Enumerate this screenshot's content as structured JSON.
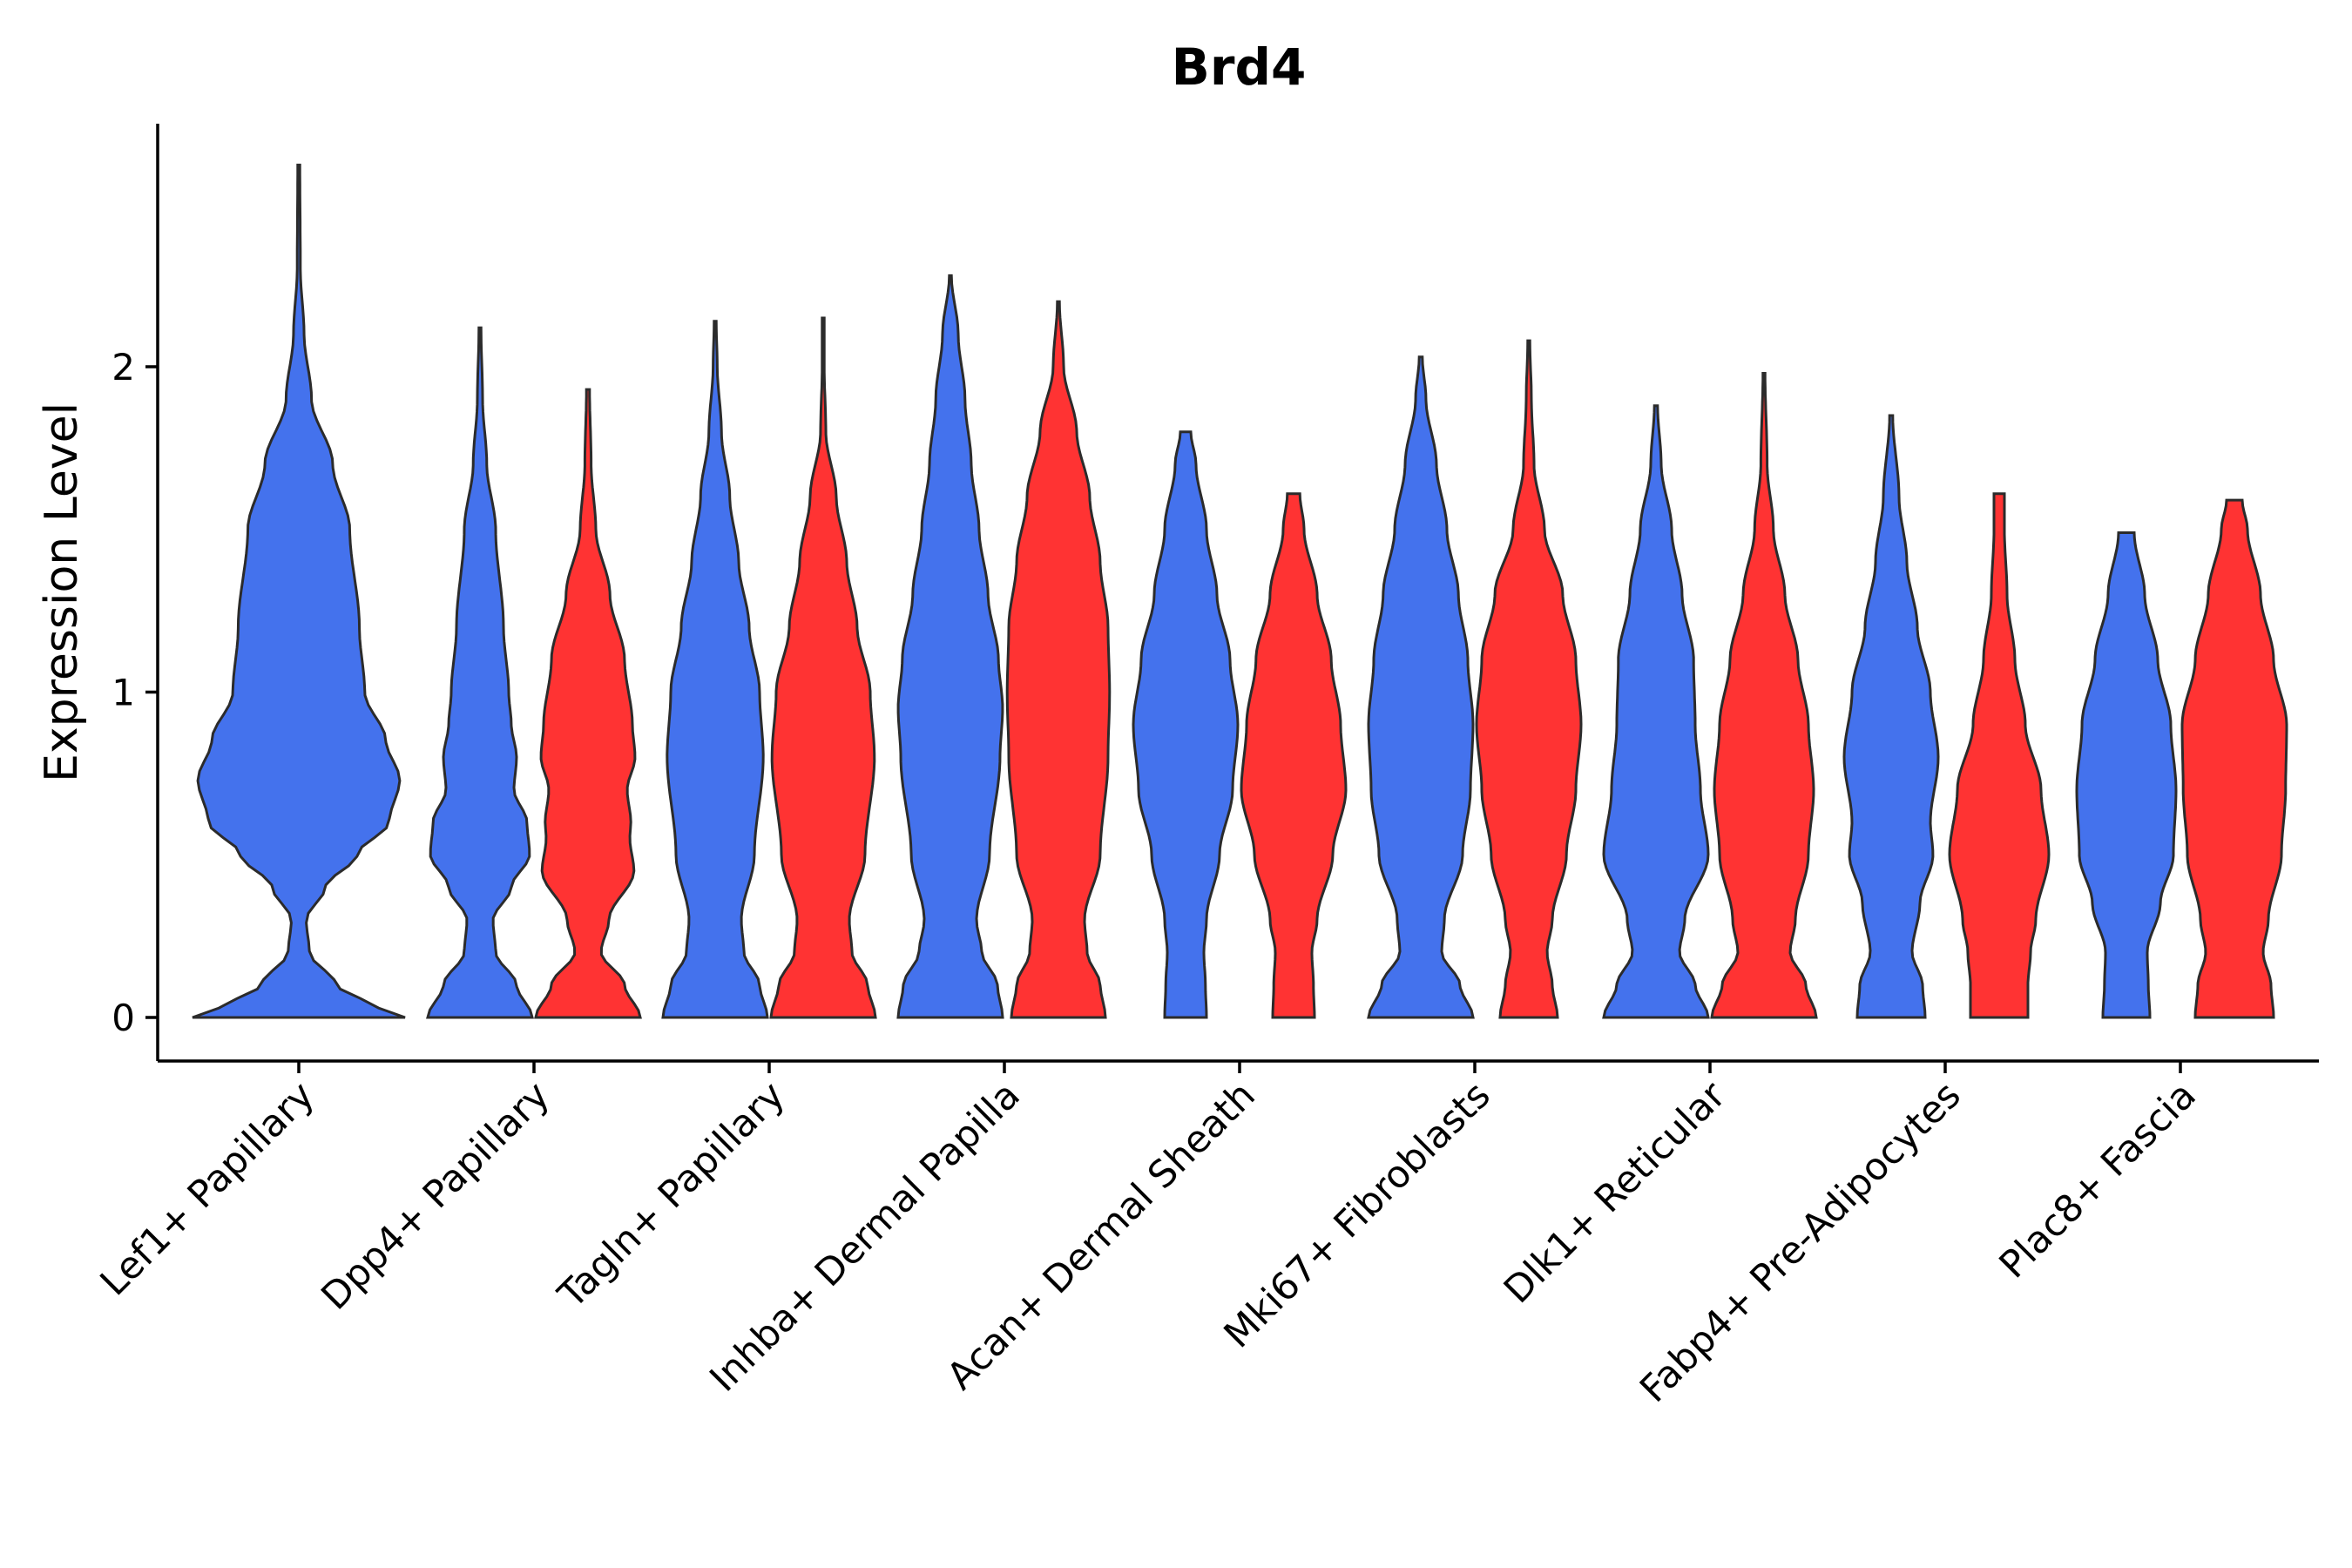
{
  "chart_data": {
    "type": "violin",
    "title": "Brd4",
    "xlabel": "",
    "ylabel": "Expression Level",
    "ylim": [
      -0.13,
      2.77
    ],
    "yticks": [
      0,
      1,
      2
    ],
    "grid": false,
    "legend": "none",
    "colors": {
      "group1": "#4472ED",
      "group2": "#FF3333",
      "outline": "#2b2b2b"
    },
    "categories": [
      "Lef1+ Papillary",
      "Dpp4+ Papillary",
      "Tagln+ Papillary",
      "Inhba+ Dermal Papilla",
      "Acan+ Dermal Sheath",
      "Mki67+ Fibroblasts",
      "Dlk1+ Reticular",
      "Fabp4+ Pre-Adipocytes",
      "Plac8+ Fascia"
    ],
    "violins": [
      {
        "category": "Lef1+ Papillary",
        "group": "group1",
        "max": 2.62,
        "profile": [
          [
            0,
            1.0
          ],
          [
            0.05,
            0.6
          ],
          [
            0.1,
            0.35
          ],
          [
            0.2,
            0.1
          ],
          [
            0.3,
            0.07
          ],
          [
            0.4,
            0.25
          ],
          [
            0.5,
            0.55
          ],
          [
            0.6,
            0.85
          ],
          [
            0.73,
            0.95
          ],
          [
            0.85,
            0.82
          ],
          [
            1.0,
            0.62
          ],
          [
            1.2,
            0.57
          ],
          [
            1.5,
            0.48
          ],
          [
            1.7,
            0.32
          ],
          [
            1.9,
            0.12
          ],
          [
            2.1,
            0.05
          ],
          [
            2.3,
            0.015
          ],
          [
            2.62,
            0.01
          ]
        ]
      },
      {
        "category": "Dpp4+ Papillary",
        "group": "group1",
        "max": 2.12,
        "profile": [
          [
            0,
            1.0
          ],
          [
            0.1,
            0.7
          ],
          [
            0.2,
            0.3
          ],
          [
            0.3,
            0.25
          ],
          [
            0.4,
            0.6
          ],
          [
            0.5,
            0.95
          ],
          [
            0.6,
            0.9
          ],
          [
            0.7,
            0.65
          ],
          [
            0.8,
            0.7
          ],
          [
            0.9,
            0.6
          ],
          [
            1.0,
            0.55
          ],
          [
            1.2,
            0.45
          ],
          [
            1.5,
            0.3
          ],
          [
            1.7,
            0.13
          ],
          [
            1.9,
            0.05
          ],
          [
            2.12,
            0.02
          ]
        ]
      },
      {
        "category": "Dpp4+ Papillary",
        "group": "group2",
        "max": 1.93,
        "profile": [
          [
            0,
            1.0
          ],
          [
            0.1,
            0.7
          ],
          [
            0.2,
            0.25
          ],
          [
            0.3,
            0.4
          ],
          [
            0.45,
            0.88
          ],
          [
            0.55,
            0.8
          ],
          [
            0.6,
            0.82
          ],
          [
            0.7,
            0.75
          ],
          [
            0.8,
            0.9
          ],
          [
            0.9,
            0.85
          ],
          [
            1.1,
            0.7
          ],
          [
            1.3,
            0.42
          ],
          [
            1.5,
            0.15
          ],
          [
            1.7,
            0.06
          ],
          [
            1.93,
            0.03
          ]
        ]
      },
      {
        "category": "Tagln+ Papillary",
        "group": "group1",
        "max": 2.14,
        "profile": [
          [
            0,
            1.0
          ],
          [
            0.1,
            0.85
          ],
          [
            0.2,
            0.55
          ],
          [
            0.3,
            0.5
          ],
          [
            0.5,
            0.75
          ],
          [
            0.8,
            0.92
          ],
          [
            1.0,
            0.85
          ],
          [
            1.2,
            0.65
          ],
          [
            1.4,
            0.45
          ],
          [
            1.6,
            0.28
          ],
          [
            1.8,
            0.12
          ],
          [
            2.0,
            0.04
          ],
          [
            2.14,
            0.02
          ]
        ]
      },
      {
        "category": "Tagln+ Papillary",
        "group": "group2",
        "max": 2.15,
        "profile": [
          [
            0,
            1.0
          ],
          [
            0.1,
            0.85
          ],
          [
            0.2,
            0.55
          ],
          [
            0.3,
            0.5
          ],
          [
            0.5,
            0.8
          ],
          [
            0.8,
            0.98
          ],
          [
            1.0,
            0.9
          ],
          [
            1.2,
            0.65
          ],
          [
            1.4,
            0.45
          ],
          [
            1.6,
            0.25
          ],
          [
            1.8,
            0.05
          ],
          [
            2.0,
            0.02
          ],
          [
            2.15,
            0.02
          ]
        ]
      },
      {
        "category": "Inhba+ Dermal Papilla",
        "group": "group1",
        "max": 2.28,
        "profile": [
          [
            0,
            1.0
          ],
          [
            0.1,
            0.9
          ],
          [
            0.2,
            0.6
          ],
          [
            0.3,
            0.5
          ],
          [
            0.5,
            0.75
          ],
          [
            0.8,
            0.95
          ],
          [
            0.95,
            1.0
          ],
          [
            1.1,
            0.92
          ],
          [
            1.3,
            0.72
          ],
          [
            1.5,
            0.55
          ],
          [
            1.7,
            0.4
          ],
          [
            1.9,
            0.28
          ],
          [
            2.1,
            0.15
          ],
          [
            2.28,
            0.02
          ]
        ]
      },
      {
        "category": "Inhba+ Dermal Papilla",
        "group": "group2",
        "max": 2.2,
        "profile": [
          [
            0,
            0.9
          ],
          [
            0.1,
            0.8
          ],
          [
            0.2,
            0.55
          ],
          [
            0.3,
            0.5
          ],
          [
            0.5,
            0.8
          ],
          [
            0.8,
            0.95
          ],
          [
            1.0,
            0.98
          ],
          [
            1.2,
            0.95
          ],
          [
            1.4,
            0.8
          ],
          [
            1.6,
            0.6
          ],
          [
            1.8,
            0.35
          ],
          [
            2.0,
            0.1
          ],
          [
            2.2,
            0.02
          ]
        ]
      },
      {
        "category": "Acan+ Dermal Sheath",
        "group": "group1",
        "max": 1.8,
        "profile": [
          [
            0,
            0.4
          ],
          [
            0.1,
            0.38
          ],
          [
            0.2,
            0.35
          ],
          [
            0.3,
            0.4
          ],
          [
            0.5,
            0.65
          ],
          [
            0.7,
            0.9
          ],
          [
            0.9,
            1.0
          ],
          [
            1.1,
            0.85
          ],
          [
            1.3,
            0.6
          ],
          [
            1.5,
            0.4
          ],
          [
            1.7,
            0.2
          ],
          [
            1.8,
            0.1
          ]
        ]
      },
      {
        "category": "Acan+ Dermal Sheath",
        "group": "group2",
        "max": 1.61,
        "profile": [
          [
            0,
            0.4
          ],
          [
            0.1,
            0.38
          ],
          [
            0.2,
            0.35
          ],
          [
            0.3,
            0.45
          ],
          [
            0.5,
            0.75
          ],
          [
            0.7,
            1.0
          ],
          [
            0.9,
            0.9
          ],
          [
            1.1,
            0.72
          ],
          [
            1.3,
            0.45
          ],
          [
            1.5,
            0.2
          ],
          [
            1.61,
            0.12
          ]
        ]
      },
      {
        "category": "Mki67+ Fibroblasts",
        "group": "group1",
        "max": 2.03,
        "profile": [
          [
            0,
            1.0
          ],
          [
            0.1,
            0.75
          ],
          [
            0.2,
            0.4
          ],
          [
            0.3,
            0.45
          ],
          [
            0.5,
            0.8
          ],
          [
            0.7,
            0.95
          ],
          [
            0.9,
            1.0
          ],
          [
            1.1,
            0.9
          ],
          [
            1.3,
            0.72
          ],
          [
            1.5,
            0.5
          ],
          [
            1.7,
            0.3
          ],
          [
            1.9,
            0.1
          ],
          [
            2.03,
            0.03
          ]
        ]
      },
      {
        "category": "Mki67+ Fibroblasts",
        "group": "group2",
        "max": 2.08,
        "profile": [
          [
            0,
            0.55
          ],
          [
            0.1,
            0.45
          ],
          [
            0.2,
            0.35
          ],
          [
            0.3,
            0.45
          ],
          [
            0.5,
            0.72
          ],
          [
            0.7,
            0.9
          ],
          [
            0.9,
            1.0
          ],
          [
            1.1,
            0.9
          ],
          [
            1.3,
            0.65
          ],
          [
            1.5,
            0.3
          ],
          [
            1.7,
            0.1
          ],
          [
            1.9,
            0.05
          ],
          [
            2.08,
            0.02
          ]
        ]
      },
      {
        "category": "Dlk1+ Reticular",
        "group": "group1",
        "max": 1.88,
        "profile": [
          [
            0,
            1.0
          ],
          [
            0.1,
            0.75
          ],
          [
            0.2,
            0.45
          ],
          [
            0.3,
            0.55
          ],
          [
            0.5,
            1.0
          ],
          [
            0.7,
            0.85
          ],
          [
            0.9,
            0.75
          ],
          [
            1.1,
            0.72
          ],
          [
            1.3,
            0.5
          ],
          [
            1.5,
            0.3
          ],
          [
            1.7,
            0.1
          ],
          [
            1.88,
            0.03
          ]
        ]
      },
      {
        "category": "Dlk1+ Reticular",
        "group": "group2",
        "max": 1.98,
        "profile": [
          [
            0,
            1.0
          ],
          [
            0.1,
            0.8
          ],
          [
            0.2,
            0.5
          ],
          [
            0.3,
            0.6
          ],
          [
            0.5,
            0.85
          ],
          [
            0.7,
            0.95
          ],
          [
            0.9,
            0.85
          ],
          [
            1.1,
            0.65
          ],
          [
            1.3,
            0.4
          ],
          [
            1.5,
            0.18
          ],
          [
            1.7,
            0.06
          ],
          [
            1.98,
            0.02
          ]
        ]
      },
      {
        "category": "Fabp4+ Pre-Adipocytes",
        "group": "group1",
        "max": 1.85,
        "profile": [
          [
            0,
            0.65
          ],
          [
            0.1,
            0.6
          ],
          [
            0.2,
            0.4
          ],
          [
            0.35,
            0.55
          ],
          [
            0.5,
            0.8
          ],
          [
            0.6,
            0.75
          ],
          [
            0.8,
            0.9
          ],
          [
            1.0,
            0.75
          ],
          [
            1.2,
            0.5
          ],
          [
            1.4,
            0.3
          ],
          [
            1.6,
            0.15
          ],
          [
            1.85,
            0.03
          ]
        ]
      },
      {
        "category": "Fabp4+ Pre-Adipocytes",
        "group": "group2",
        "max": 1.61,
        "profile": [
          [
            0,
            0.55
          ],
          [
            0.1,
            0.55
          ],
          [
            0.2,
            0.6
          ],
          [
            0.3,
            0.7
          ],
          [
            0.5,
            0.95
          ],
          [
            0.7,
            0.8
          ],
          [
            0.9,
            0.5
          ],
          [
            1.1,
            0.3
          ],
          [
            1.3,
            0.15
          ],
          [
            1.5,
            0.1
          ],
          [
            1.61,
            0.1
          ]
        ]
      },
      {
        "category": "Plac8+ Fascia",
        "group": "group1",
        "max": 1.49,
        "profile": [
          [
            0,
            0.45
          ],
          [
            0.1,
            0.42
          ],
          [
            0.2,
            0.4
          ],
          [
            0.35,
            0.65
          ],
          [
            0.5,
            0.9
          ],
          [
            0.7,
            0.95
          ],
          [
            0.9,
            0.85
          ],
          [
            1.1,
            0.6
          ],
          [
            1.3,
            0.35
          ],
          [
            1.49,
            0.15
          ]
        ]
      },
      {
        "category": "Plac8+ Fascia",
        "group": "group2",
        "max": 1.59,
        "profile": [
          [
            0,
            0.75
          ],
          [
            0.1,
            0.7
          ],
          [
            0.2,
            0.55
          ],
          [
            0.3,
            0.65
          ],
          [
            0.5,
            0.9
          ],
          [
            0.7,
            0.98
          ],
          [
            0.9,
            1.0
          ],
          [
            1.1,
            0.75
          ],
          [
            1.3,
            0.5
          ],
          [
            1.5,
            0.25
          ],
          [
            1.59,
            0.15
          ]
        ]
      }
    ]
  }
}
